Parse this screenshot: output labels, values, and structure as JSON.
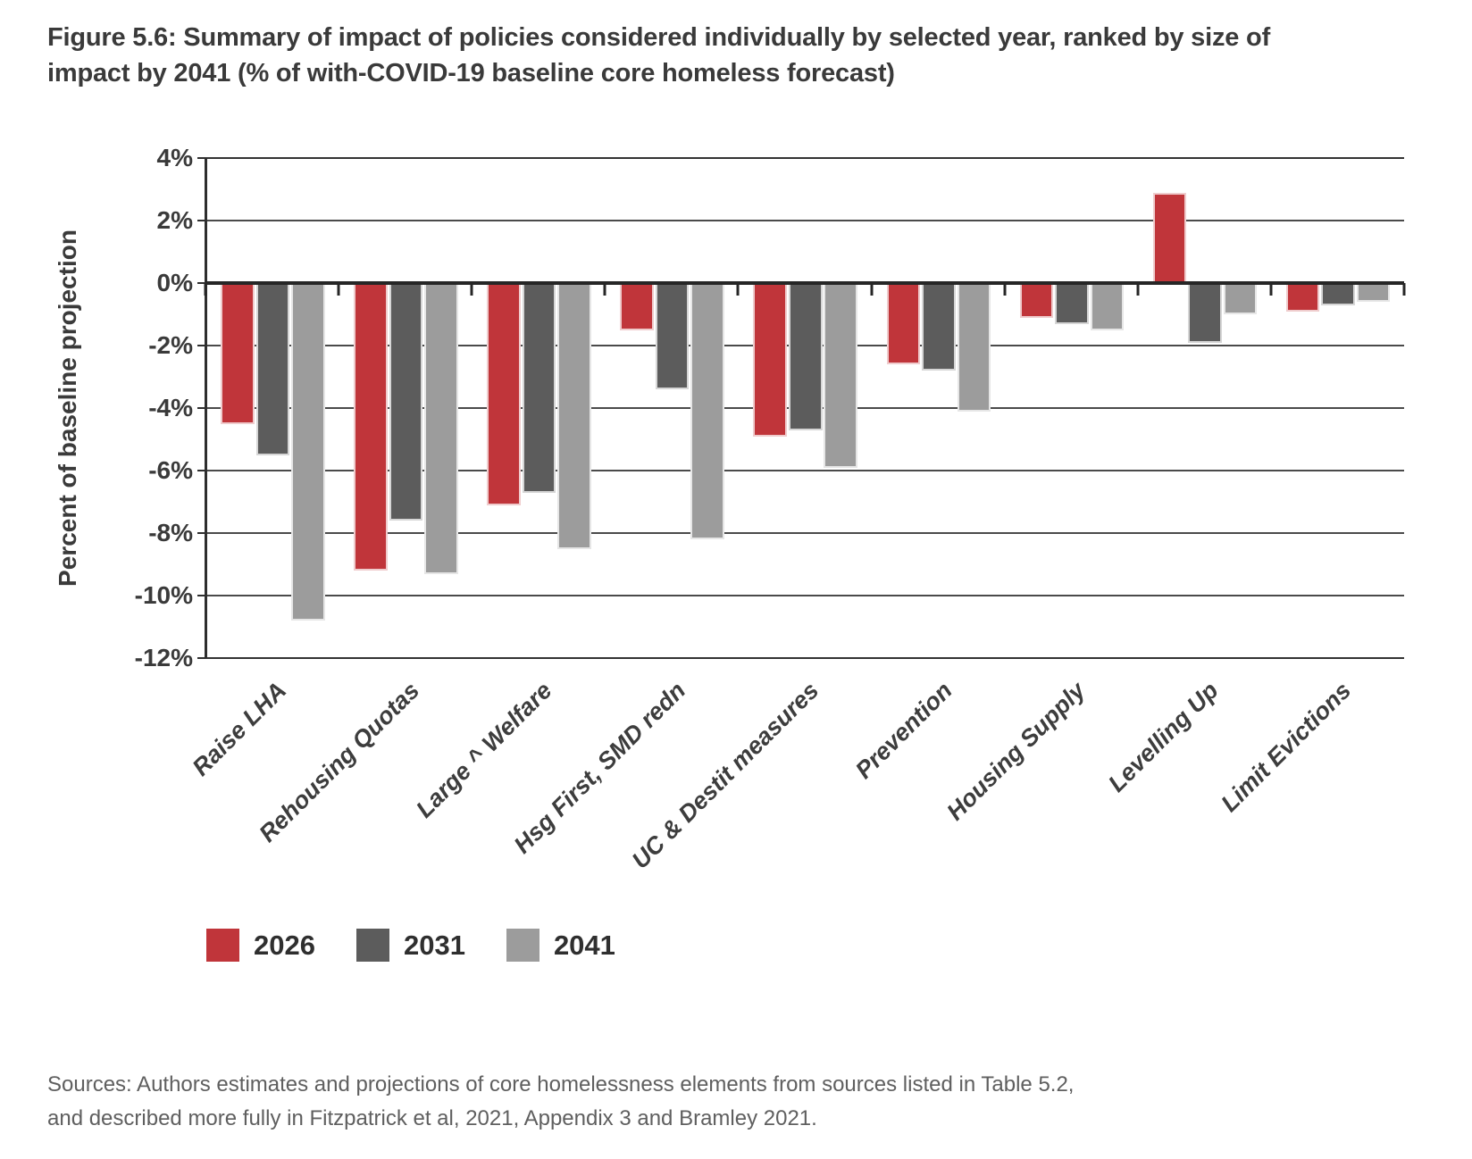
{
  "title": "Figure 5.6: Summary of impact of policies considered individually by selected year, ranked by size of impact by 2041 (% of with-COVID-19 baseline core homeless forecast)",
  "sources": {
    "line1": "Sources: Authors estimates and projections of core homelessness elements from sources listed in Table 5.2,",
    "line2": "and described more fully in Fitzpatrick et al, 2021, Appendix 3 and Bramley 2021."
  },
  "chart_data": {
    "type": "bar",
    "title": "Summary of impact of policies considered individually by selected year",
    "ylabel": "Percent of baseline projection",
    "xlabel": "",
    "ylim": [
      -12,
      4
    ],
    "ytick_step": 2,
    "ytick_labels": [
      "4%",
      "2%",
      "0%",
      "-2%",
      "-4%",
      "-6%",
      "-8%",
      "-10%",
      "-12%"
    ],
    "grid": true,
    "legend_position": "bottom",
    "categories": [
      "Raise LHA",
      "Rehousing Quotas",
      "Large ^ Welfare",
      "Hsg First, SMD redn",
      "UC & Destit measures",
      "Prevention",
      "Housing Supply",
      "Levelling Up",
      "Limit Evictions"
    ],
    "series": [
      {
        "name": "2026",
        "color": "#c0353a",
        "values": [
          -4.5,
          -9.2,
          -7.1,
          -1.5,
          -4.9,
          -2.6,
          -1.1,
          2.9,
          -0.9
        ]
      },
      {
        "name": "2031",
        "color": "#5c5c5c",
        "values": [
          -5.5,
          -7.6,
          -6.7,
          -3.4,
          -4.7,
          -2.8,
          -1.3,
          -1.9,
          -0.7
        ]
      },
      {
        "name": "2041",
        "color": "#9c9c9c",
        "values": [
          -10.8,
          -9.3,
          -8.5,
          -8.2,
          -5.9,
          -4.1,
          -1.5,
          -1.0,
          -0.6
        ]
      }
    ]
  }
}
